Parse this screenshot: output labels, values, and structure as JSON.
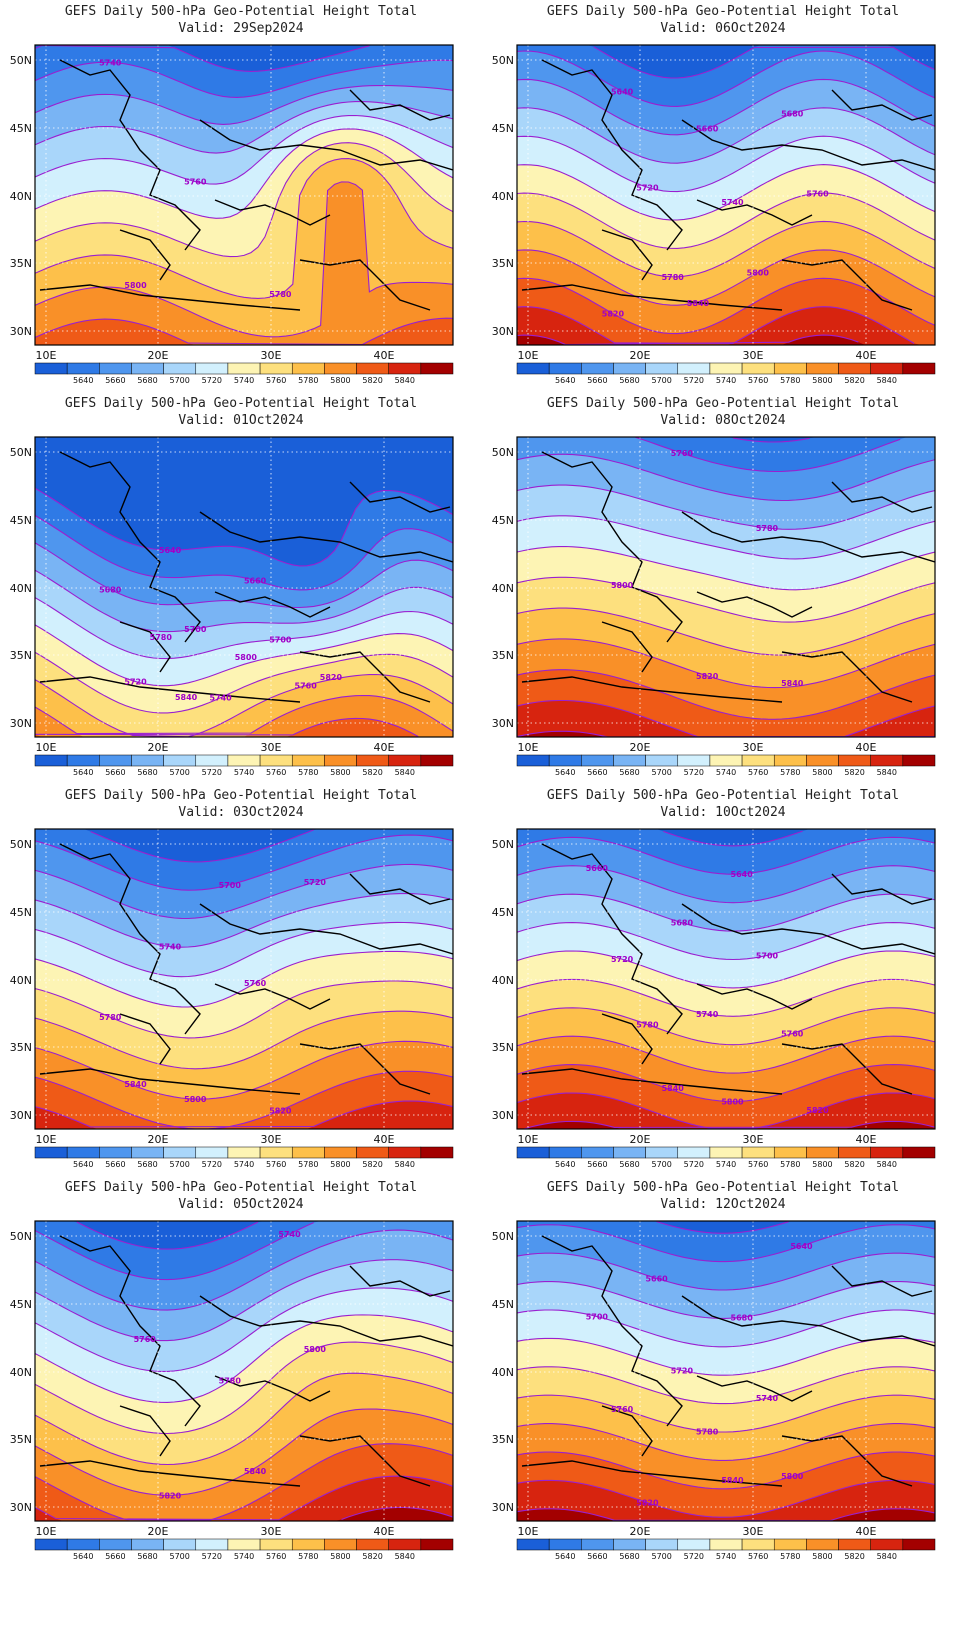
{
  "title_line1": "GEFS Daily 500-hPa Geo-Potential Height Total",
  "lat_ticks": [
    "50N",
    "45N",
    "40N",
    "35N",
    "30N"
  ],
  "lon_ticks": [
    "10E",
    "20E",
    "30E",
    "40E"
  ],
  "colorbar": {
    "labels": [
      "5640",
      "5660",
      "5680",
      "5700",
      "5720",
      "5740",
      "5760",
      "5780",
      "5800",
      "5820",
      "5840"
    ],
    "colors": [
      "#1a5fd8",
      "#2f7ae6",
      "#4f96ee",
      "#79b4f4",
      "#a9d6fa",
      "#d2f0fd",
      "#fdf4b4",
      "#fde07e",
      "#fdc04a",
      "#f99028",
      "#ef5a17",
      "#d7240f",
      "#a30000"
    ]
  },
  "contour_line_color": "#9a1fd0",
  "panels": [
    {
      "valid": "Valid: 29Sep2024",
      "labels": [
        "5740",
        "5760",
        "5780",
        "5800"
      ]
    },
    {
      "valid": "Valid: 06Oct2024",
      "labels": [
        "5640",
        "5660",
        "5680",
        "5720",
        "5740",
        "5760",
        "5780",
        "5800",
        "5820",
        "5840"
      ]
    },
    {
      "valid": "Valid: 01Oct2024",
      "labels": [
        "5640",
        "5660",
        "5680",
        "5700",
        "5700",
        "5720",
        "5740",
        "5760",
        "5780",
        "5800",
        "5820",
        "5840"
      ]
    },
    {
      "valid": "Valid: 08Oct2024",
      "labels": [
        "5760",
        "5780",
        "5800",
        "5820",
        "5840"
      ]
    },
    {
      "valid": "Valid: 03Oct2024",
      "labels": [
        "5700",
        "5720",
        "5740",
        "5760",
        "5780",
        "5800",
        "5820",
        "5840"
      ]
    },
    {
      "valid": "Valid: 10Oct2024",
      "labels": [
        "5640",
        "5660",
        "5680",
        "5700",
        "5720",
        "5740",
        "5760",
        "5780",
        "5800",
        "5820",
        "5840"
      ]
    },
    {
      "valid": "Valid: 05Oct2024",
      "labels": [
        "5740",
        "5760",
        "5780",
        "5800",
        "5820",
        "5840"
      ]
    },
    {
      "valid": "Valid: 12Oct2024",
      "labels": [
        "5640",
        "5660",
        "5680",
        "5700",
        "5720",
        "5740",
        "5760",
        "5780",
        "5800",
        "5820",
        "5840"
      ]
    }
  ]
}
